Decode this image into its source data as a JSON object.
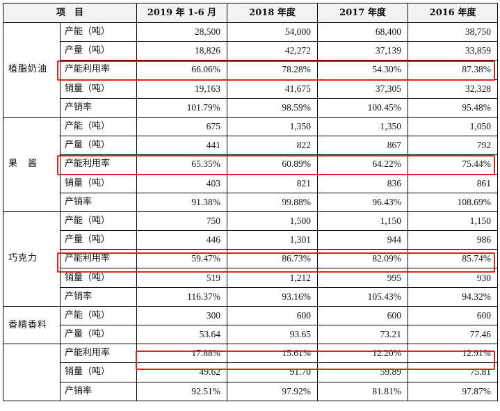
{
  "table": {
    "headers": [
      "项　目",
      "2019 年 1-6 月",
      "2018 年度",
      "2017 年度",
      "2016 年度"
    ],
    "groups": [
      {
        "category": "植脂奶油",
        "rows": [
          {
            "item": "产能（吨）",
            "values": [
              "28,500",
              "54,000",
              "68,400",
              "38,750"
            ]
          },
          {
            "item": "产量（吨）",
            "values": [
              "18,826",
              "42,272",
              "37,139",
              "33,859"
            ]
          },
          {
            "item": "产能利用率",
            "values": [
              "66.06%",
              "78.28%",
              "54.30%",
              "87.38%"
            ]
          },
          {
            "item": "销量（吨）",
            "values": [
              "19,163",
              "41,675",
              "37,305",
              "32,328"
            ]
          },
          {
            "item": "产销率",
            "values": [
              "101.79%",
              "98.59%",
              "100.45%",
              "95.48%"
            ]
          }
        ]
      },
      {
        "category": "果　酱",
        "rows": [
          {
            "item": "产能（吨）",
            "values": [
              "675",
              "1,350",
              "1,350",
              "1,050"
            ]
          },
          {
            "item": "产量（吨）",
            "values": [
              "441",
              "822",
              "867",
              "792"
            ]
          },
          {
            "item": "产能利用率",
            "values": [
              "65.35%",
              "60.89%",
              "64.22%",
              "75.44%"
            ]
          },
          {
            "item": "销量（吨）",
            "values": [
              "403",
              "821",
              "836",
              "861"
            ]
          },
          {
            "item": "产销率",
            "values": [
              "91.38%",
              "99.88%",
              "96.43%",
              "108.69%"
            ]
          }
        ]
      },
      {
        "category": "巧克力",
        "rows": [
          {
            "item": "产能（吨）",
            "values": [
              "750",
              "1,500",
              "1,150",
              "1,150"
            ]
          },
          {
            "item": "产量（吨）",
            "values": [
              "446",
              "1,301",
              "944",
              "986"
            ]
          },
          {
            "item": "产能利用率",
            "values": [
              "59.47%",
              "86.73%",
              "82.09%",
              "85.74%"
            ]
          },
          {
            "item": "销量（吨）",
            "values": [
              "519",
              "1,212",
              "995",
              "930"
            ]
          },
          {
            "item": "产销率",
            "values": [
              "116.37%",
              "93.16%",
              "105.43%",
              "94.32%"
            ]
          }
        ]
      },
      {
        "category": "香精香料",
        "rows": [
          {
            "item": "产能（吨）",
            "values": [
              "300",
              "600",
              "600",
              "600"
            ]
          },
          {
            "item": "产量（吨）",
            "values": [
              "53.64",
              "93.65",
              "73.21",
              "77.46"
            ]
          }
        ]
      },
      {
        "category": "",
        "rows": [
          {
            "item": "产能利用率",
            "values": [
              "17.88%",
              "15.61%",
              "12.20%",
              "12.91%"
            ]
          },
          {
            "item": "销量（吨）",
            "values": [
              "49.62",
              "91.70",
              "59.89",
              "75.81"
            ]
          },
          {
            "item": "产销率",
            "values": [
              "92.51%",
              "97.92%",
              "81.81%",
              "97.87%"
            ]
          }
        ]
      }
    ]
  },
  "highlight_color": "#e2231a"
}
